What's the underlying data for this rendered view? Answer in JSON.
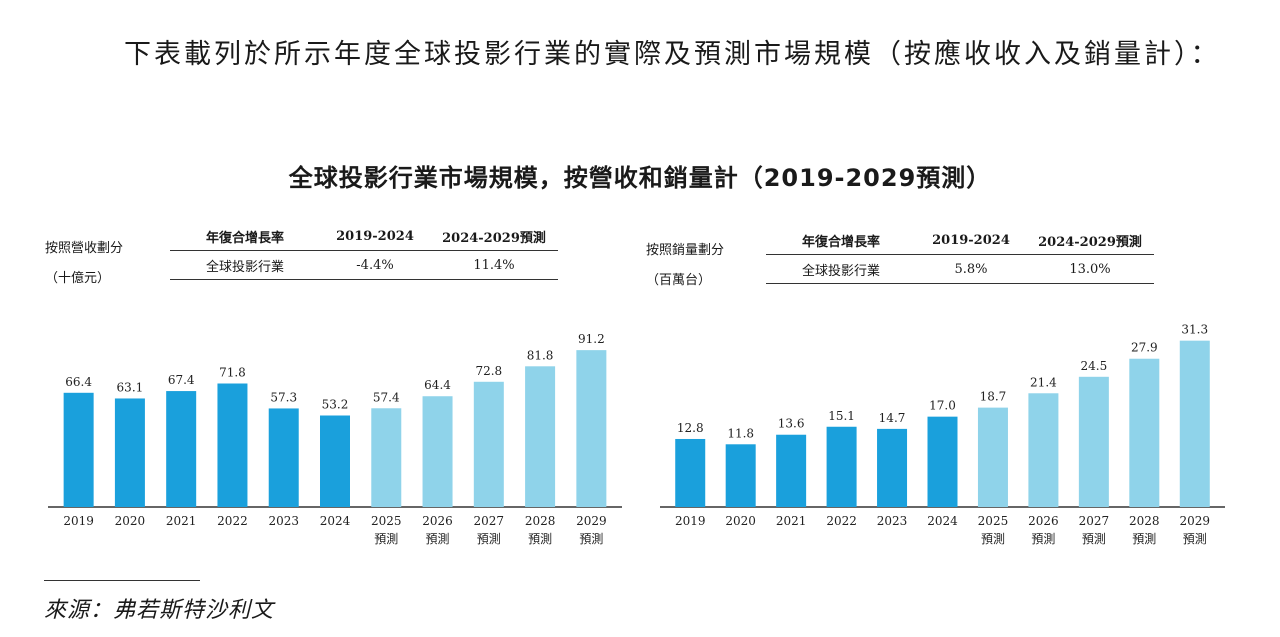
{
  "intro_text": "下表載列於所示年度全球投影行業的實際及預測市場規模（按應收收入及銷量計）：",
  "title": "全球投影行業市場規模，按營收和銷量計（2019-2029預測）",
  "colors": {
    "actual": "#1aa0dc",
    "forecast": "#8fd3ea",
    "axis": "#333333"
  },
  "left": {
    "label_line1": "按照營收劃分",
    "label_line2": "（十億元）",
    "table": {
      "header": [
        "年復合增長率",
        "2019-2024",
        "2024-2029預測"
      ],
      "row": [
        "全球投影行業",
        "-4.4%",
        "11.4%"
      ]
    }
  },
  "right": {
    "label_line1": "按照銷量劃分",
    "label_line2": "（百萬台）",
    "table": {
      "header": [
        "年復合增長率",
        "2019-2024",
        "2024-2029預測"
      ],
      "row": [
        "全球投影行業",
        "5.8%",
        "13.0%"
      ]
    }
  },
  "source": "來源：弗若斯特沙利文",
  "chart_data": [
    {
      "type": "bar",
      "title": "按照營收劃分（十億元）",
      "categories": [
        "2019",
        "2020",
        "2021",
        "2022",
        "2023",
        "2024",
        "2025",
        "2026",
        "2027",
        "2028",
        "2029"
      ],
      "category_sublabels": [
        "",
        "",
        "",
        "",
        "",
        "",
        "預測",
        "預測",
        "預測",
        "預測",
        "預測"
      ],
      "values": [
        66.4,
        63.1,
        67.4,
        71.8,
        57.3,
        53.2,
        57.4,
        64.4,
        72.8,
        81.8,
        91.2
      ],
      "value_labels": [
        "66.4",
        "63.1",
        "67.4",
        "71.8",
        "57.3",
        "53.2",
        "57.4",
        "64.4",
        "72.8",
        "81.8",
        "91.2"
      ],
      "forecast": [
        false,
        false,
        false,
        false,
        false,
        false,
        true,
        true,
        true,
        true,
        true
      ],
      "ylim": [
        0,
        100
      ]
    },
    {
      "type": "bar",
      "title": "按照銷量劃分（百萬台）",
      "categories": [
        "2019",
        "2020",
        "2021",
        "2022",
        "2023",
        "2024",
        "2025",
        "2026",
        "2027",
        "2028",
        "2029"
      ],
      "category_sublabels": [
        "",
        "",
        "",
        "",
        "",
        "",
        "預測",
        "預測",
        "預測",
        "預測",
        "預測"
      ],
      "values": [
        12.8,
        11.8,
        13.6,
        15.1,
        14.7,
        17.0,
        18.7,
        21.4,
        24.5,
        27.9,
        31.3
      ],
      "value_labels": [
        "12.8",
        "11.8",
        "13.6",
        "15.1",
        "14.7",
        "17.0",
        "18.7",
        "21.4",
        "24.5",
        "27.9",
        "31.3"
      ],
      "forecast": [
        false,
        false,
        false,
        false,
        false,
        false,
        true,
        true,
        true,
        true,
        true
      ],
      "ylim": [
        0,
        35
      ]
    }
  ]
}
